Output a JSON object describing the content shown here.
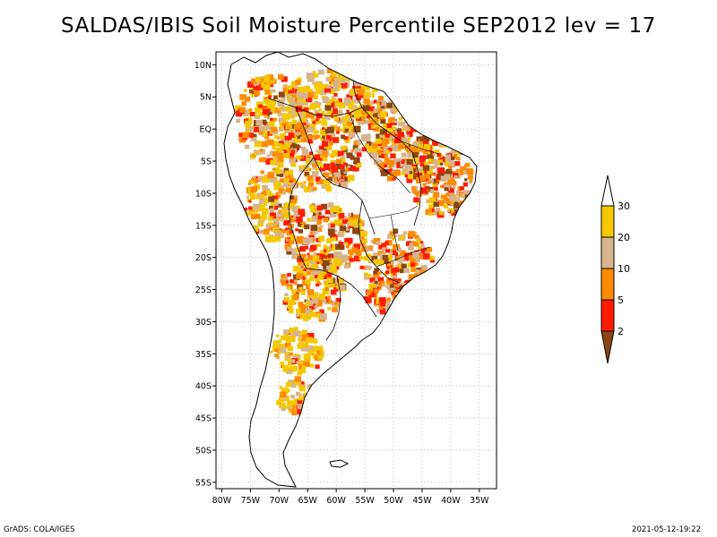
{
  "title": "SALDAS/IBIS Soil Moisture Percentile SEP2012 lev = 17",
  "map": {
    "lon_range": [
      -81,
      -32
    ],
    "lat_range": [
      -56,
      12
    ],
    "lon_ticks": [
      "80W",
      "75W",
      "70W",
      "65W",
      "60W",
      "55W",
      "50W",
      "45W",
      "40W",
      "35W"
    ],
    "lat_ticks": [
      "10N",
      "5N",
      "EQ",
      "5S",
      "10S",
      "15S",
      "20S",
      "25S",
      "30S",
      "35S",
      "40S",
      "45S",
      "50S",
      "55S"
    ],
    "grid": "dotted"
  },
  "legend": {
    "labels": [
      "30",
      "20",
      "10",
      "5",
      "2"
    ],
    "colors": {
      "gt30": "#ffffff",
      "20to30": "#f5c800",
      "10to20": "#d8b48c",
      "5to10": "#ff8a00",
      "2to5": "#ff1a00",
      "lt2": "#8b4513"
    }
  },
  "footer": {
    "left": "GrADS: COLA/IGES",
    "right": "2021-05-12-19:22"
  }
}
